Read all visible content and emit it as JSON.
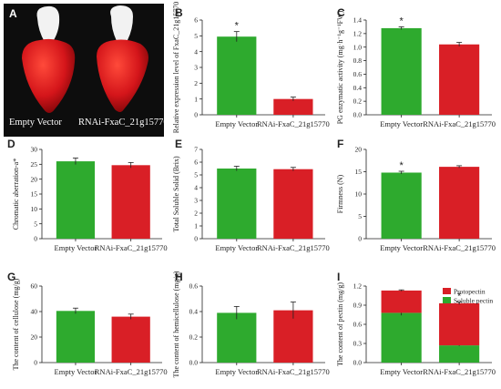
{
  "colors": {
    "empty_vector": "#2eaa2e",
    "rnai": "#d91f26",
    "protopectin": "#d91f26",
    "soluble_pectin": "#2eaa2e"
  },
  "photo": {
    "letter": "A",
    "left_label": "Empty Vector",
    "right_label": "RNAi-FxaC_21g15770"
  },
  "chart_data": [
    {
      "id": "B",
      "type": "bar",
      "letter": "B",
      "ylabel": "Relative expression level of FxaC_21g15770",
      "categories": [
        "Empty Vector",
        "RNAi-FxaC_21g15770"
      ],
      "values": [
        4.95,
        1.0
      ],
      "errors": [
        0.32,
        0.12
      ],
      "ylim": [
        0,
        6
      ],
      "yticks": [
        "0",
        "1",
        "2",
        "3",
        "4",
        "5",
        "6"
      ],
      "significance": [
        "*",
        ""
      ]
    },
    {
      "id": "C",
      "type": "bar",
      "letter": "C",
      "ylabel": "PG enzymatic activity (mg·h⁻¹g⁻¹FW)",
      "categories": [
        "Empty Vector",
        "RNAi-FxaC_21g15770"
      ],
      "values": [
        1.28,
        1.04
      ],
      "errors": [
        0.02,
        0.03
      ],
      "ylim": [
        0,
        1.4
      ],
      "yticks": [
        "0.0",
        "0.2",
        "0.4",
        "0.6",
        "0.8",
        "1.0",
        "1.2",
        "1.4"
      ],
      "significance": [
        "*",
        ""
      ]
    },
    {
      "id": "D",
      "type": "bar",
      "letter": "D",
      "ylabel": "Chromatic aberration-a*",
      "categories": [
        "Empty Vector",
        "RNAi-FxaC_21g15770"
      ],
      "values": [
        26.0,
        24.7
      ],
      "errors": [
        1.1,
        0.9
      ],
      "ylim": [
        0,
        30
      ],
      "yticks": [
        "0",
        "5",
        "10",
        "15",
        "20",
        "25",
        "30"
      ],
      "significance": [
        "",
        ""
      ]
    },
    {
      "id": "E",
      "type": "bar",
      "letter": "E",
      "ylabel": "Total Soluble Solid (Brix)",
      "categories": [
        "Empty Vector",
        "RNAi-FxaC_21g15770"
      ],
      "values": [
        5.5,
        5.45
      ],
      "errors": [
        0.18,
        0.14
      ],
      "ylim": [
        0,
        7
      ],
      "yticks": [
        "0",
        "1",
        "2",
        "3",
        "4",
        "5",
        "6",
        "7"
      ],
      "significance": [
        "",
        ""
      ]
    },
    {
      "id": "F",
      "type": "bar",
      "letter": "F",
      "ylabel": "Firmness (N)",
      "categories": [
        "Empty Vector",
        "RNAi-FxaC_21g15770"
      ],
      "values": [
        14.8,
        16.1
      ],
      "errors": [
        0.3,
        0.25
      ],
      "ylim": [
        0,
        20
      ],
      "yticks": [
        "0",
        "5",
        "10",
        "15",
        "20"
      ],
      "significance": [
        "*",
        ""
      ]
    },
    {
      "id": "G",
      "type": "bar",
      "letter": "G",
      "ylabel": "The content of cellulose (mg/g)",
      "categories": [
        "Empty Vector",
        "RNAi-FxaC_21g15770"
      ],
      "values": [
        40.5,
        36.0
      ],
      "errors": [
        2.2,
        2.0
      ],
      "ylim": [
        0,
        60
      ],
      "yticks": [
        "0",
        "20",
        "40",
        "60"
      ],
      "significance": [
        "",
        ""
      ]
    },
    {
      "id": "H",
      "type": "bar",
      "letter": "H",
      "ylabel": "The content of hemicellulose (mg/g)",
      "categories": [
        "Empty Vector",
        "RNAi-FxaC_21g15770"
      ],
      "values": [
        0.39,
        0.41
      ],
      "errors": [
        0.05,
        0.065
      ],
      "ylim": [
        0,
        0.6
      ],
      "yticks": [
        "0.0",
        "0.2",
        "0.4",
        "0.6"
      ],
      "significance": [
        "",
        ""
      ]
    },
    {
      "id": "I",
      "type": "stacked-bar",
      "letter": "I",
      "ylabel": "The content of pectin (mg/g)",
      "categories": [
        "Empty Vector",
        "RNAi-FxaC_21g15770"
      ],
      "series": [
        {
          "name": "Soluble pectin",
          "values": [
            0.78,
            0.27
          ],
          "errors": [
            0.04,
            0.01
          ]
        },
        {
          "name": "Protopectin",
          "values": [
            0.35,
            0.66
          ],
          "errors": [
            0.01,
            0.02
          ]
        }
      ],
      "ylim": [
        0,
        1.2
      ],
      "yticks": [
        "0.0",
        "0.3",
        "0.6",
        "0.9",
        "1.2"
      ],
      "significance": [
        "",
        "*"
      ],
      "legend": "top-right"
    }
  ]
}
